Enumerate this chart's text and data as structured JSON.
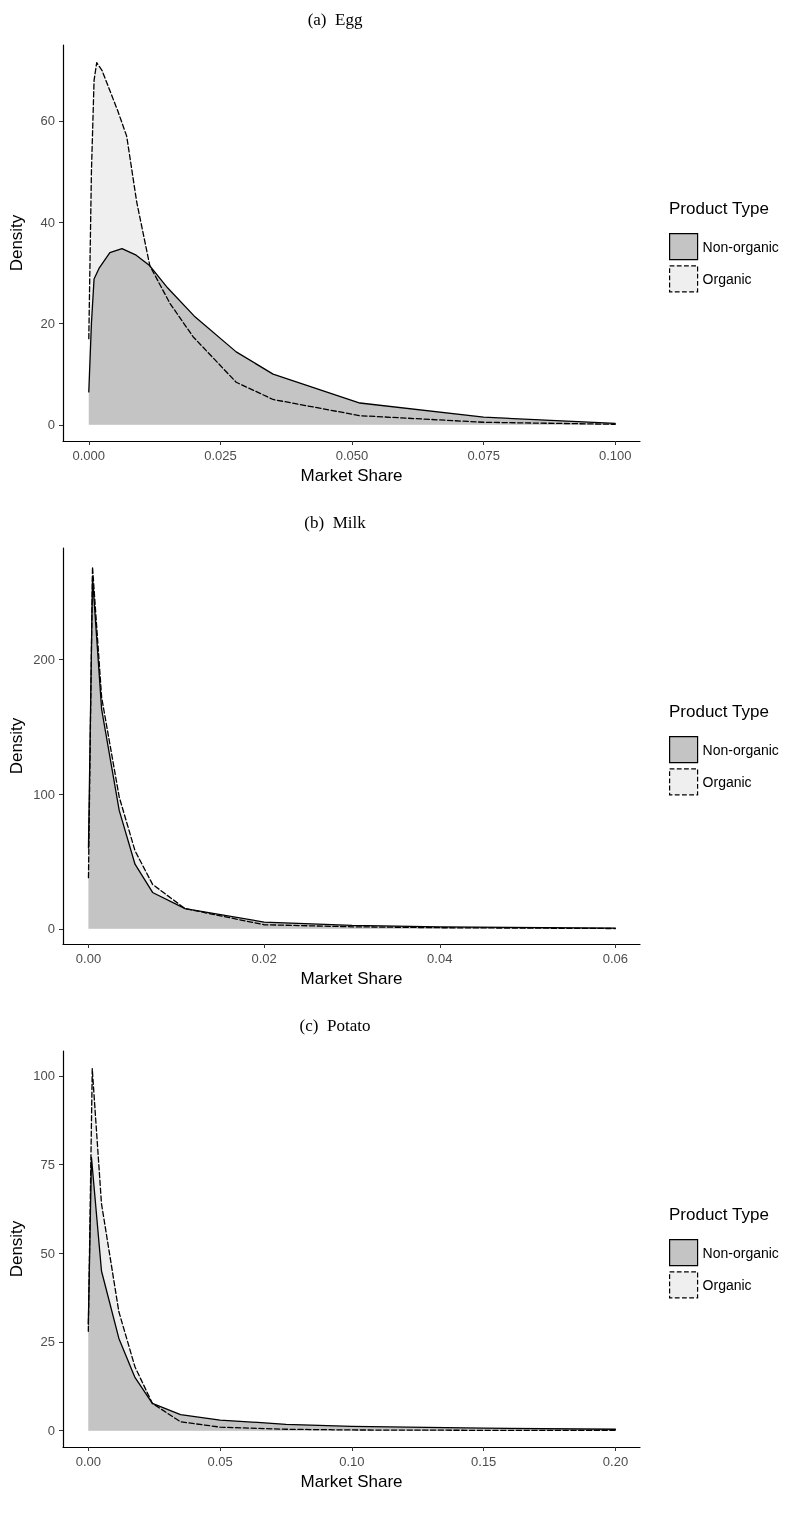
{
  "chart_data": [
    {
      "type": "area",
      "title": "(a)  Egg",
      "xlabel": "Market Share",
      "ylabel": "Density",
      "legend_title": "Product Type",
      "legend": "right",
      "grid": false,
      "xlim": [
        -0.0049,
        0.1047
      ],
      "ylim": [
        -3.2,
        75
      ],
      "xticks": [
        {
          "value": 0,
          "label": "0.000"
        },
        0.025,
        {
          "value": 0.05,
          "label": "0.050"
        },
        0.075,
        {
          "value": 0.1,
          "label": "0.100"
        }
      ],
      "yticks": [
        0,
        20,
        40,
        60
      ],
      "series": [
        {
          "name": "Non-organic",
          "color": "#c4c4c4",
          "line_style": "solid",
          "x": [
            0,
            0.0005,
            0.001,
            0.002,
            0.004,
            0.0063,
            0.009,
            0.0116,
            0.015,
            0.02,
            0.028,
            0.035,
            0.0515,
            0.075,
            0.1
          ],
          "values": [
            6.5,
            20,
            28.8,
            31,
            34,
            34.8,
            33.5,
            31.4,
            27,
            21.5,
            14.4,
            10,
            4.3,
            1.5,
            0.3
          ]
        },
        {
          "name": "Organic",
          "color": "#efefef",
          "line_style": "dashed",
          "x": [
            0,
            0.0005,
            0.001,
            0.0015,
            0.0025,
            0.004,
            0.0055,
            0.0072,
            0.0091,
            0.0116,
            0.0154,
            0.0198,
            0.028,
            0.035,
            0.0515,
            0.075,
            0.1
          ],
          "values": [
            17,
            50,
            68,
            71.5,
            70,
            66,
            62,
            57,
            44,
            31.4,
            24,
            17.4,
            8.4,
            5,
            1.8,
            0.5,
            0.1
          ]
        }
      ]
    },
    {
      "type": "area",
      "title": "(b)  Milk",
      "xlabel": "Market Share",
      "ylabel": "Density",
      "legend_title": "Product Type",
      "legend": "right",
      "grid": false,
      "xlim": [
        -0.0029,
        0.0628
      ],
      "ylim": [
        -11.3,
        283
      ],
      "xticks": [
        {
          "value": 0,
          "label": "0.00"
        },
        {
          "value": 0.02,
          "label": "0.02"
        },
        {
          "value": 0.04,
          "label": "0.04"
        },
        {
          "value": 0.06,
          "label": "0.06"
        }
      ],
      "yticks": [
        0,
        100,
        200
      ],
      "series": [
        {
          "name": "Non-organic",
          "color": "#c4c4c4",
          "line_style": "solid",
          "x": [
            0,
            0.00046,
            0.0015,
            0.0035,
            0.0053,
            0.0073,
            0.011,
            0.02,
            0.03,
            0.04,
            0.06
          ],
          "values": [
            60,
            261,
            163,
            88,
            48,
            27,
            15,
            5,
            2.5,
            1.5,
            0.5
          ]
        },
        {
          "name": "Organic",
          "color": "#efefef",
          "line_style": "dashed",
          "x": [
            0,
            0.00046,
            0.0015,
            0.0035,
            0.0053,
            0.0073,
            0.011,
            0.02,
            0.03,
            0.04,
            0.06
          ],
          "values": [
            38,
            269,
            172,
            98,
            58,
            33,
            15,
            3,
            1.5,
            0.8,
            0.2
          ]
        }
      ]
    },
    {
      "type": "area",
      "title": "(c)  Potato",
      "xlabel": "Market Share",
      "ylabel": "Density",
      "legend_title": "Product Type",
      "legend": "right",
      "grid": false,
      "xlim": [
        -0.0096,
        0.2093
      ],
      "ylim": [
        -4.6,
        107
      ],
      "xticks": [
        {
          "value": 0,
          "label": "0.00"
        },
        0.05,
        {
          "value": 0.1,
          "label": "0.10"
        },
        0.15,
        {
          "value": 0.2,
          "label": "0.20"
        }
      ],
      "yticks": [
        0,
        25,
        50,
        75,
        100
      ],
      "series": [
        {
          "name": "Non-organic",
          "color": "#c4c4c4",
          "line_style": "solid",
          "x": [
            0,
            0.0012,
            0.005,
            0.0116,
            0.0177,
            0.0243,
            0.035,
            0.05,
            0.075,
            0.1,
            0.15,
            0.2
          ],
          "values": [
            30,
            77,
            45,
            26,
            15,
            7.7,
            4.5,
            3,
            1.8,
            1.2,
            0.7,
            0.4
          ]
        },
        {
          "name": "Organic",
          "color": "#efefef",
          "line_style": "dashed",
          "x": [
            0,
            0.0015,
            0.005,
            0.0116,
            0.0177,
            0.0243,
            0.035,
            0.05,
            0.075,
            0.1,
            0.15,
            0.2
          ],
          "values": [
            28,
            102,
            64,
            33.5,
            18,
            7.7,
            2.5,
            1,
            0.4,
            0.2,
            0.1,
            0.1
          ]
        }
      ]
    }
  ]
}
